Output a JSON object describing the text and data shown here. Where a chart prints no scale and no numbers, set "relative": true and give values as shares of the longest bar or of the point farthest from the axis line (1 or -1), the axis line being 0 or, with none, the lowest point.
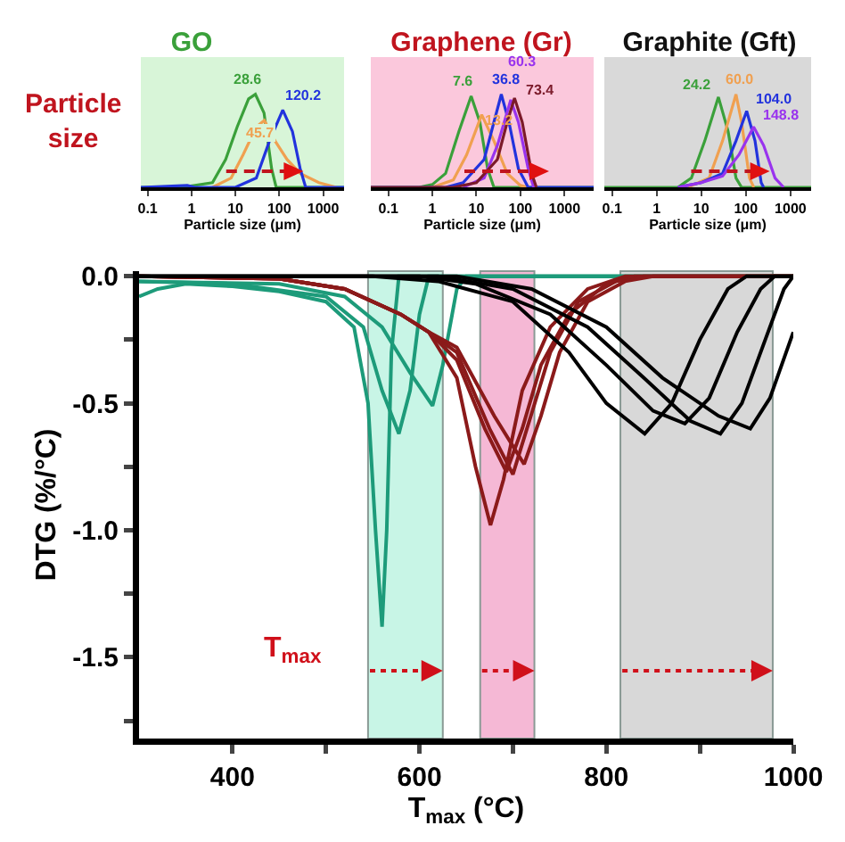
{
  "chart_data": [
    {
      "type": "line",
      "title": "GO",
      "xlabel": "Particle size (μm)",
      "relative": true,
      "log": "x",
      "xlim": [
        0.07,
        3000
      ],
      "xticks": [
        0.1,
        1,
        10,
        100,
        1000
      ],
      "tick_labels": "x",
      "marker": "none",
      "line_style": "solid",
      "annotations": [
        {
          "text": "28.6",
          "x": 28.6,
          "y": 1
        },
        {
          "text": "45.7",
          "x": 45.7,
          "y": 0.72
        },
        {
          "text": "120.2",
          "x": 120.2,
          "y": 0.83
        },
        "Particle size"
      ],
      "series": [
        {
          "color": "#3aa03a",
          "x": [
            0.07,
            0.6,
            3,
            6,
            11,
            20,
            28.6,
            45,
            67,
            85,
            3000
          ],
          "values": [
            0,
            0,
            0.05,
            0.3,
            0.65,
            0.95,
            1,
            0.8,
            0.2,
            0,
            0
          ]
        },
        {
          "color": "#f0a050",
          "x": [
            3,
            8,
            15,
            30,
            45.7,
            80,
            150,
            300,
            800,
            2000
          ],
          "values": [
            0,
            0.1,
            0.35,
            0.65,
            0.72,
            0.5,
            0.3,
            0.15,
            0.05,
            0
          ]
        },
        {
          "color": "#2233dd",
          "x": [
            0.07,
            0.8,
            1.2,
            10,
            30,
            60,
            120.2,
            200,
            300,
            400,
            3000
          ],
          "values": [
            0,
            0.02,
            0,
            0,
            0.1,
            0.5,
            0.83,
            0.6,
            0.2,
            0,
            0
          ]
        }
      ]
    },
    {
      "type": "line",
      "title": "Graphene (Gr)",
      "xlabel": "Particle size (μm)",
      "relative": true,
      "log": "x",
      "xlim": [
        0.04,
        4600
      ],
      "xticks": [
        0.1,
        1,
        10,
        100,
        1000
      ],
      "tick_labels": "x",
      "marker": "none",
      "line_style": "solid",
      "annotations": [
        {
          "text": "7.6",
          "x": 7.6,
          "y": 0.98
        },
        {
          "text": "13.2",
          "x": 13.2,
          "y": 0.78
        },
        {
          "text": "36.8",
          "x": 36.8,
          "y": 1
        },
        {
          "text": "60.3",
          "x": 60.3,
          "y": 0.94
        },
        {
          "text": "73.4",
          "x": 73.4,
          "y": 0.96
        }
      ],
      "series": [
        {
          "color": "#3aa03a",
          "x": [
            0.04,
            0.5,
            1,
            2,
            4,
            7.6,
            12,
            18,
            25,
            4600
          ],
          "values": [
            0,
            0,
            0.03,
            0.15,
            0.6,
            0.98,
            0.7,
            0.2,
            0,
            0
          ]
        },
        {
          "color": "#f0a050",
          "x": [
            1,
            3,
            6,
            13.2,
            25,
            50,
            100,
            150
          ],
          "values": [
            0,
            0.08,
            0.35,
            0.78,
            0.5,
            0.15,
            0.02,
            0
          ]
        },
        {
          "color": "#2233dd",
          "x": [
            0.04,
            2,
            5,
            15,
            25,
            36.8,
            55,
            90,
            150,
            4600
          ],
          "values": [
            0,
            0,
            0.05,
            0.3,
            0.7,
            1,
            0.7,
            0.2,
            0,
            0
          ]
        },
        {
          "color": "#9933ee",
          "x": [
            5,
            15,
            30,
            60.3,
            90,
            150,
            200
          ],
          "values": [
            0,
            0.1,
            0.45,
            0.94,
            0.7,
            0.2,
            0
          ]
        },
        {
          "color": "#7b1a2a",
          "x": [
            0.04,
            3,
            10,
            30,
            50,
            73.4,
            110,
            180,
            230
          ],
          "values": [
            0,
            0,
            0.05,
            0.3,
            0.7,
            0.96,
            0.7,
            0.15,
            0
          ]
        }
      ]
    },
    {
      "type": "line",
      "title": "Graphite (Gft)",
      "xlabel": "Particle size (μm)",
      "relative": true,
      "log": "x",
      "xlim": [
        0.067,
        2900
      ],
      "xticks": [
        0.1,
        1,
        10,
        100,
        1000
      ],
      "tick_labels": "x",
      "marker": "none",
      "line_style": "solid",
      "annotations": [
        {
          "text": "24.2",
          "x": 24.2,
          "y": 0.97
        },
        {
          "text": "60.0",
          "x": 60,
          "y": 1
        },
        {
          "text": "104.0",
          "x": 104,
          "y": 0.82
        },
        {
          "text": "148.8",
          "x": 148.8,
          "y": 0.65
        }
      ],
      "series": [
        {
          "color": "#3aa03a",
          "x": [
            0.067,
            3,
            6,
            12,
            24.2,
            40,
            60,
            80,
            2900
          ],
          "values": [
            0,
            0,
            0.1,
            0.5,
            0.97,
            0.6,
            0.1,
            0,
            0
          ]
        },
        {
          "color": "#f0a050",
          "x": [
            5,
            15,
            30,
            60,
            80,
            120,
            150
          ],
          "values": [
            0,
            0.1,
            0.5,
            1,
            0.7,
            0.1,
            0
          ]
        },
        {
          "color": "#2233dd",
          "x": [
            3,
            10,
            30,
            60,
            104,
            160,
            220,
            250
          ],
          "values": [
            0,
            0.05,
            0.15,
            0.5,
            0.82,
            0.5,
            0.05,
            0
          ]
        },
        {
          "color": "#9933ee",
          "x": [
            3,
            10,
            30,
            70,
            148.8,
            250,
            450,
            700
          ],
          "values": [
            0,
            0.05,
            0.12,
            0.35,
            0.65,
            0.45,
            0.1,
            0
          ]
        }
      ]
    },
    {
      "type": "line",
      "xlabel": "T$_{max}$ (°C)",
      "ylabel": "DTG (%/°C)",
      "xlim": [
        300,
        1000
      ],
      "ylim": [
        -1.82,
        0.02
      ],
      "xticks": [
        400,
        {
          "value": 500,
          "label": null
        },
        600,
        {
          "value": 700,
          "label": null
        },
        800,
        {
          "value": 900,
          "label": null
        },
        1000
      ],
      "yticks": [
        {
          "value": 0,
          "label": "0.0"
        },
        {
          "value": -0.25,
          "label": null
        },
        {
          "value": -0.5,
          "label": "-0.5"
        },
        {
          "value": -0.75,
          "label": null
        },
        {
          "value": -1,
          "label": "-1.0"
        },
        {
          "value": -1.25,
          "label": null
        },
        {
          "value": -1.5,
          "label": "-1.5"
        },
        {
          "value": -1.75,
          "label": null
        }
      ],
      "marker": "none",
      "line_style": "solid",
      "annotations": [
        "T$_{max}$"
      ],
      "bands": [
        {
          "axis": "x",
          "from": 545,
          "to": 625,
          "color": "#c8f5e6"
        },
        {
          "axis": "x",
          "from": 665,
          "to": 723,
          "color": "#f5b8d5"
        },
        {
          "axis": "x",
          "from": 815,
          "to": 978,
          "color": "#d8d8d8"
        }
      ],
      "series": [
        {
          "color": "#1d9b7a",
          "x": [
            300,
            320,
            350,
            400,
            450,
            500,
            530,
            545,
            553,
            560,
            565,
            570,
            578,
            1000
          ],
          "values": [
            -0.08,
            -0.05,
            -0.03,
            -0.04,
            -0.06,
            -0.1,
            -0.2,
            -0.5,
            -1.0,
            -1.38,
            -1.0,
            -0.3,
            0,
            0
          ]
        },
        {
          "color": "#1d9b7a",
          "x": [
            300,
            400,
            500,
            540,
            560,
            578,
            590,
            600,
            610,
            1000
          ],
          "values": [
            -0.02,
            -0.03,
            -0.08,
            -0.2,
            -0.45,
            -0.62,
            -0.45,
            -0.15,
            0,
            0
          ]
        },
        {
          "color": "#1d9b7a",
          "x": [
            300,
            450,
            520,
            560,
            590,
            614,
            625,
            640,
            650,
            1000
          ],
          "values": [
            -0.02,
            -0.03,
            -0.08,
            -0.2,
            -0.38,
            -0.51,
            -0.35,
            -0.05,
            0,
            0
          ]
        },
        {
          "color": "#8b1a1a",
          "x": [
            300,
            450,
            520,
            580,
            610,
            640,
            660,
            676,
            690,
            710,
            740,
            780,
            820,
            1000
          ],
          "values": [
            0,
            -0.01,
            -0.05,
            -0.15,
            -0.22,
            -0.4,
            -0.75,
            -0.98,
            -0.8,
            -0.45,
            -0.2,
            -0.05,
            0,
            0
          ]
        },
        {
          "color": "#8b1a1a",
          "x": [
            300,
            450,
            520,
            580,
            610,
            640,
            670,
            693,
            710,
            730,
            760,
            800,
            830,
            1000
          ],
          "values": [
            0,
            -0.01,
            -0.05,
            -0.15,
            -0.22,
            -0.33,
            -0.6,
            -0.77,
            -0.6,
            -0.35,
            -0.15,
            -0.03,
            0,
            0
          ]
        },
        {
          "color": "#8b1a1a",
          "x": [
            300,
            450,
            520,
            580,
            610,
            640,
            675,
            700,
            715,
            740,
            770,
            810,
            840,
            1000
          ],
          "values": [
            0,
            -0.01,
            -0.05,
            -0.15,
            -0.22,
            -0.3,
            -0.6,
            -0.78,
            -0.6,
            -0.3,
            -0.1,
            -0.02,
            0,
            0
          ]
        },
        {
          "color": "#8b1a1a",
          "x": [
            300,
            450,
            520,
            580,
            610,
            640,
            680,
            712,
            730,
            750,
            780,
            820,
            850,
            1000
          ],
          "values": [
            0,
            -0.01,
            -0.05,
            -0.15,
            -0.22,
            -0.28,
            -0.55,
            -0.74,
            -0.55,
            -0.3,
            -0.1,
            -0.02,
            0,
            0
          ]
        },
        {
          "color": "#000000",
          "x": [
            300,
            550,
            620,
            700,
            760,
            800,
            841,
            870,
            900,
            930,
            950,
            1000
          ],
          "values": [
            0,
            0,
            -0.02,
            -0.1,
            -0.3,
            -0.5,
            -0.62,
            -0.5,
            -0.25,
            -0.05,
            0,
            0
          ]
        },
        {
          "color": "#000000",
          "x": [
            300,
            600,
            660,
            740,
            800,
            850,
            884,
            910,
            940,
            965,
            980,
            1000
          ],
          "values": [
            0,
            0,
            -0.03,
            -0.15,
            -0.35,
            -0.53,
            -0.58,
            -0.48,
            -0.22,
            -0.05,
            0,
            0
          ]
        },
        {
          "color": "#000000",
          "x": [
            300,
            620,
            700,
            780,
            840,
            890,
            922,
            945,
            970,
            990,
            1000
          ],
          "values": [
            0,
            0,
            -0.05,
            -0.2,
            -0.4,
            -0.57,
            -0.62,
            -0.5,
            -0.25,
            -0.05,
            0
          ]
        },
        {
          "color": "#000000",
          "x": [
            300,
            640,
            720,
            800,
            860,
            920,
            954,
            975,
            1000
          ],
          "values": [
            0,
            0,
            -0.05,
            -0.2,
            -0.4,
            -0.55,
            -0.6,
            -0.48,
            -0.22
          ]
        }
      ]
    }
  ]
}
